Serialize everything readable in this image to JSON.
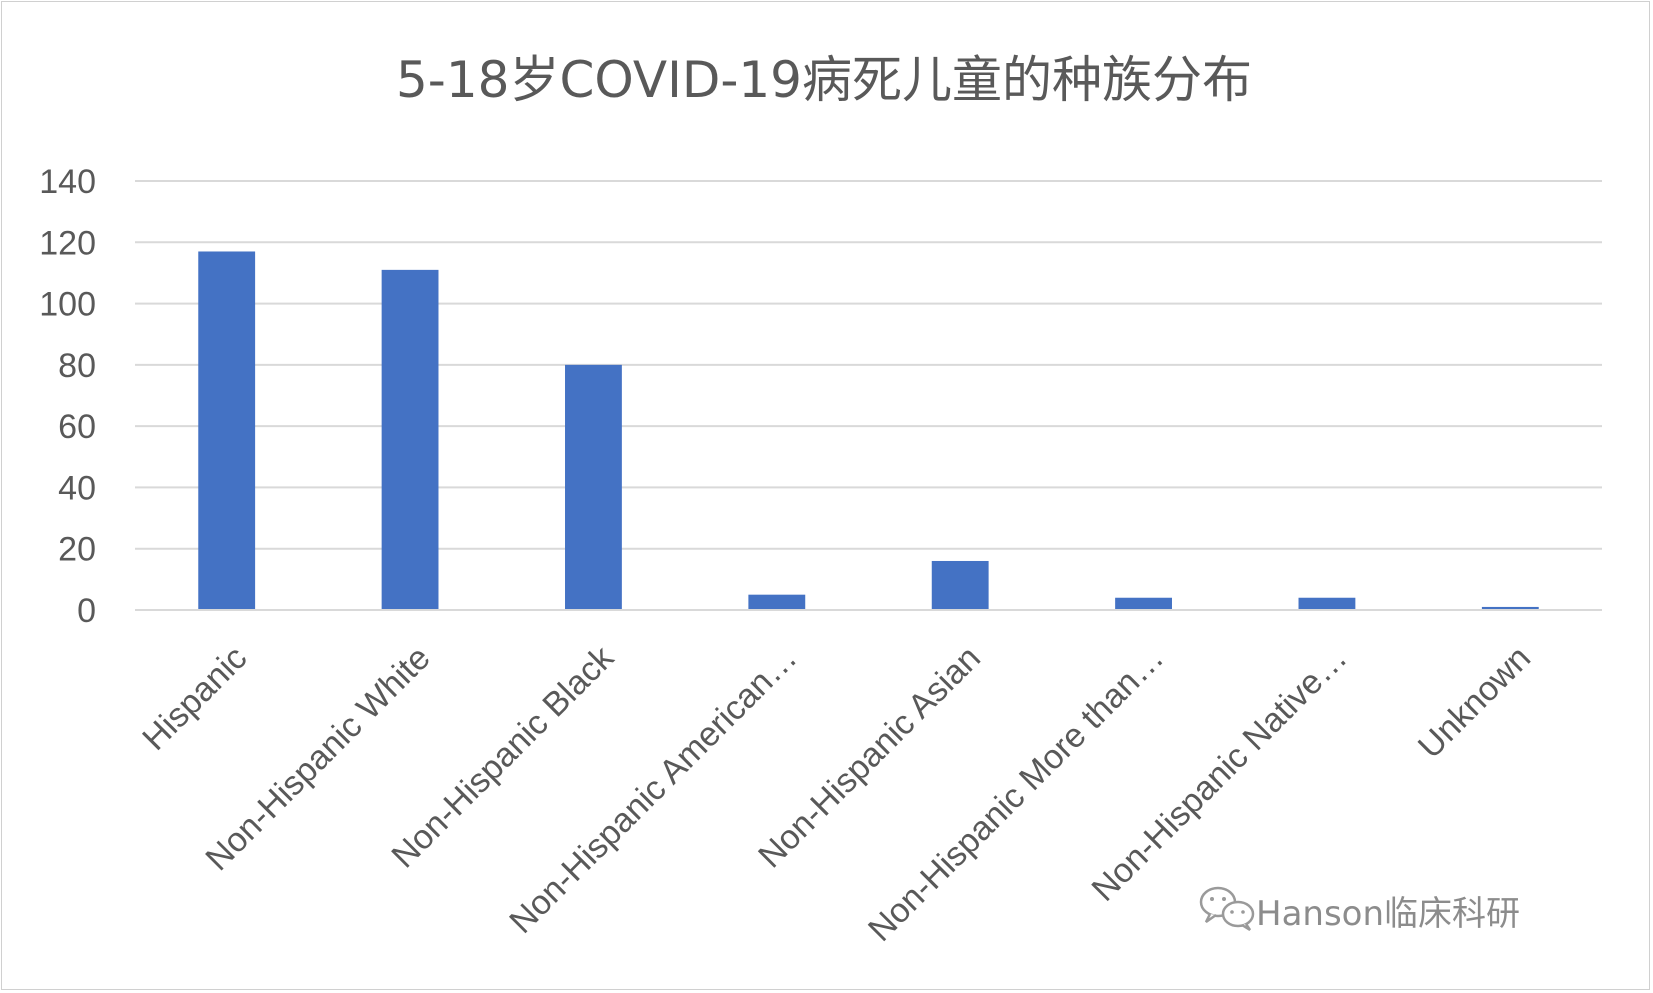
{
  "chart_data": {
    "type": "bar",
    "title": "5-18岁COVID-19病死儿童的种族分布",
    "xlabel": "",
    "ylabel": "",
    "categories": [
      "Hispanic",
      "Non-Hispanic White",
      "Non-Hispanic Black",
      "Non-Hispanic American…",
      "Non-Hispanic Asian",
      "Non-Hispanic More than…",
      "Non-Hispanic Native…",
      "Unknown"
    ],
    "values": [
      117,
      111,
      80,
      5,
      16,
      4,
      4,
      1
    ],
    "ylim": [
      0,
      140
    ],
    "yticks": [
      0,
      20,
      40,
      60,
      80,
      100,
      120,
      140
    ],
    "grid": true,
    "legend": "none",
    "bar_color": "#4472C4",
    "grid_color": "#d9d9d9",
    "text_color": "#595959"
  },
  "watermark": {
    "text": "Hanson临床科研",
    "icon": "wechat-icon"
  }
}
